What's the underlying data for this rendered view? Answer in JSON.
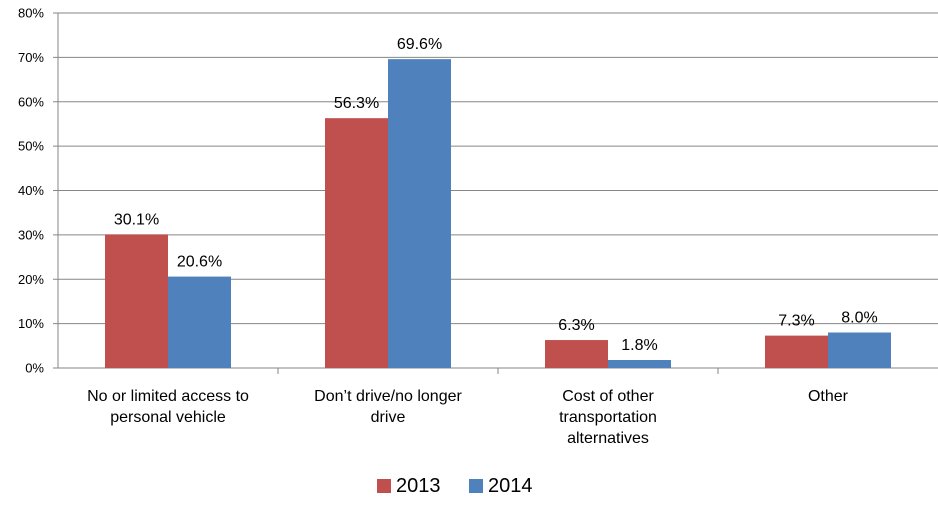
{
  "chart_data": {
    "type": "bar",
    "categories": [
      [
        "No or limited access to",
        "personal vehicle"
      ],
      [
        "Don’t drive/no longer",
        "drive"
      ],
      [
        "Cost of other",
        "transportation",
        "alternatives"
      ],
      [
        "Other"
      ]
    ],
    "series": [
      {
        "name": "2013",
        "color": "#c0504d",
        "values": [
          30.1,
          56.3,
          6.3,
          7.3
        ],
        "labels": [
          "30.1%",
          "56.3%",
          "6.3%",
          "7.3%"
        ]
      },
      {
        "name": "2014",
        "color": "#4f81bd",
        "values": [
          20.6,
          69.6,
          1.8,
          8.0
        ],
        "labels": [
          "20.6%",
          "69.6%",
          "1.8%",
          "8.0%"
        ]
      }
    ],
    "ylim": [
      0,
      80
    ],
    "yticks": [
      0,
      10,
      20,
      30,
      40,
      50,
      60,
      70,
      80
    ],
    "ytick_labels": [
      "0%",
      "10%",
      "20%",
      "30%",
      "40%",
      "50%",
      "60%",
      "70%",
      "80%"
    ],
    "grid": true,
    "legend": "bottom"
  }
}
